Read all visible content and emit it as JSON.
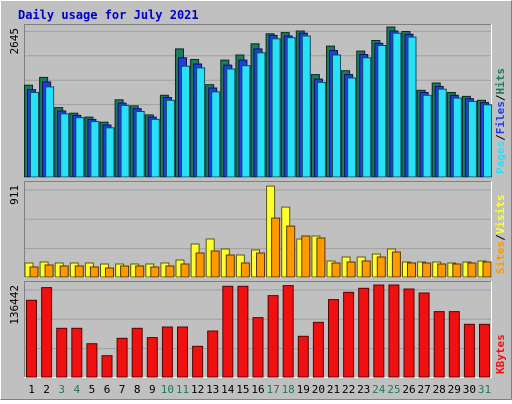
{
  "title": "Daily usage for July 2021",
  "colors": {
    "background": "#C0C0C0",
    "grid": "#A0A0A0",
    "title": "#0000C8",
    "hits": "#1E7A5E",
    "files": "#1E3EE6",
    "pages": "#28E0F8",
    "visits": "#FFFF30",
    "sites": "#FF9900",
    "kbytes": "#F01010",
    "weekend_day": "#1E7A5E",
    "weekday": "#000000"
  },
  "chart_data": [
    {
      "type": "bar",
      "name": "hits-files-pages",
      "ymax_label": "2645",
      "ylim": [
        0,
        2645
      ],
      "categories": [
        "1",
        "2",
        "3",
        "4",
        "5",
        "6",
        "7",
        "8",
        "9",
        "10",
        "11",
        "12",
        "13",
        "14",
        "15",
        "16",
        "17",
        "18",
        "19",
        "20",
        "21",
        "22",
        "23",
        "24",
        "25",
        "26",
        "27",
        "28",
        "29",
        "30",
        "31"
      ],
      "weekend_days": [
        "3",
        "4",
        "10",
        "11",
        "17",
        "18",
        "24",
        "25",
        "31"
      ],
      "series": [
        {
          "name": "Hits",
          "values": [
            1640,
            1780,
            1240,
            1140,
            1070,
            980,
            1380,
            1270,
            1110,
            1460,
            2290,
            2100,
            1650,
            2090,
            2180,
            2380,
            2560,
            2580,
            2610,
            1830,
            2340,
            1900,
            2250,
            2440,
            2680,
            2600,
            1550,
            1680,
            1510,
            1440,
            1370
          ]
        },
        {
          "name": "Files",
          "values": [
            1560,
            1700,
            1180,
            1100,
            1030,
            930,
            1320,
            1220,
            1070,
            1420,
            2130,
            2020,
            1590,
            2000,
            2090,
            2290,
            2530,
            2520,
            2570,
            1750,
            2260,
            1830,
            2190,
            2390,
            2610,
            2550,
            1510,
            1620,
            1460,
            1400,
            1330
          ]
        },
        {
          "name": "Pages",
          "values": [
            1510,
            1610,
            1130,
            1060,
            990,
            880,
            1280,
            1170,
            1030,
            1370,
            1980,
            1950,
            1520,
            1930,
            1990,
            2220,
            2470,
            2490,
            2520,
            1690,
            2180,
            1770,
            2130,
            2350,
            2570,
            2500,
            1460,
            1570,
            1410,
            1350,
            1290
          ]
        }
      ]
    },
    {
      "type": "bar",
      "name": "visits-sites",
      "ymax_label": "911",
      "ylim": [
        0,
        911
      ],
      "series": [
        {
          "name": "Visits",
          "values": [
            140,
            150,
            140,
            140,
            140,
            130,
            130,
            130,
            130,
            140,
            170,
            330,
            380,
            280,
            220,
            270,
            910,
            700,
            380,
            410,
            160,
            200,
            200,
            230,
            280,
            150,
            150,
            150,
            140,
            150,
            160
          ]
        },
        {
          "name": "Sites",
          "values": [
            100,
            120,
            110,
            110,
            100,
            90,
            110,
            110,
            100,
            110,
            130,
            240,
            260,
            220,
            140,
            240,
            590,
            510,
            410,
            390,
            140,
            150,
            160,
            200,
            250,
            140,
            140,
            130,
            130,
            140,
            150
          ]
        }
      ]
    },
    {
      "type": "bar",
      "name": "kbytes",
      "ymax_label": "136442",
      "ylim": [
        0,
        136442
      ],
      "series": [
        {
          "name": "KBytes",
          "values": [
            115000,
            134000,
            73000,
            73000,
            50000,
            32000,
            58000,
            73000,
            59000,
            75000,
            75000,
            46000,
            69000,
            136000,
            136000,
            89000,
            122000,
            137000,
            61000,
            82000,
            116000,
            127000,
            133000,
            138000,
            138000,
            132000,
            126000,
            98000,
            98000,
            79000,
            79000
          ]
        }
      ]
    }
  ],
  "legend_right": {
    "top": [
      {
        "label": "Pages",
        "color": "#28E0F8"
      },
      {
        "label": "/",
        "color": "#000000"
      },
      {
        "label": "Files",
        "color": "#1E3EE6"
      },
      {
        "label": "/",
        "color": "#000000"
      },
      {
        "label": "Hits",
        "color": "#1E7A5E"
      }
    ],
    "middle": [
      {
        "label": "Sites",
        "color": "#FF9900"
      },
      {
        "label": "/",
        "color": "#000000"
      },
      {
        "label": "Visits",
        "color": "#FFFF30"
      }
    ],
    "bottom": [
      {
        "label": "KBytes",
        "color": "#F01010"
      }
    ]
  }
}
